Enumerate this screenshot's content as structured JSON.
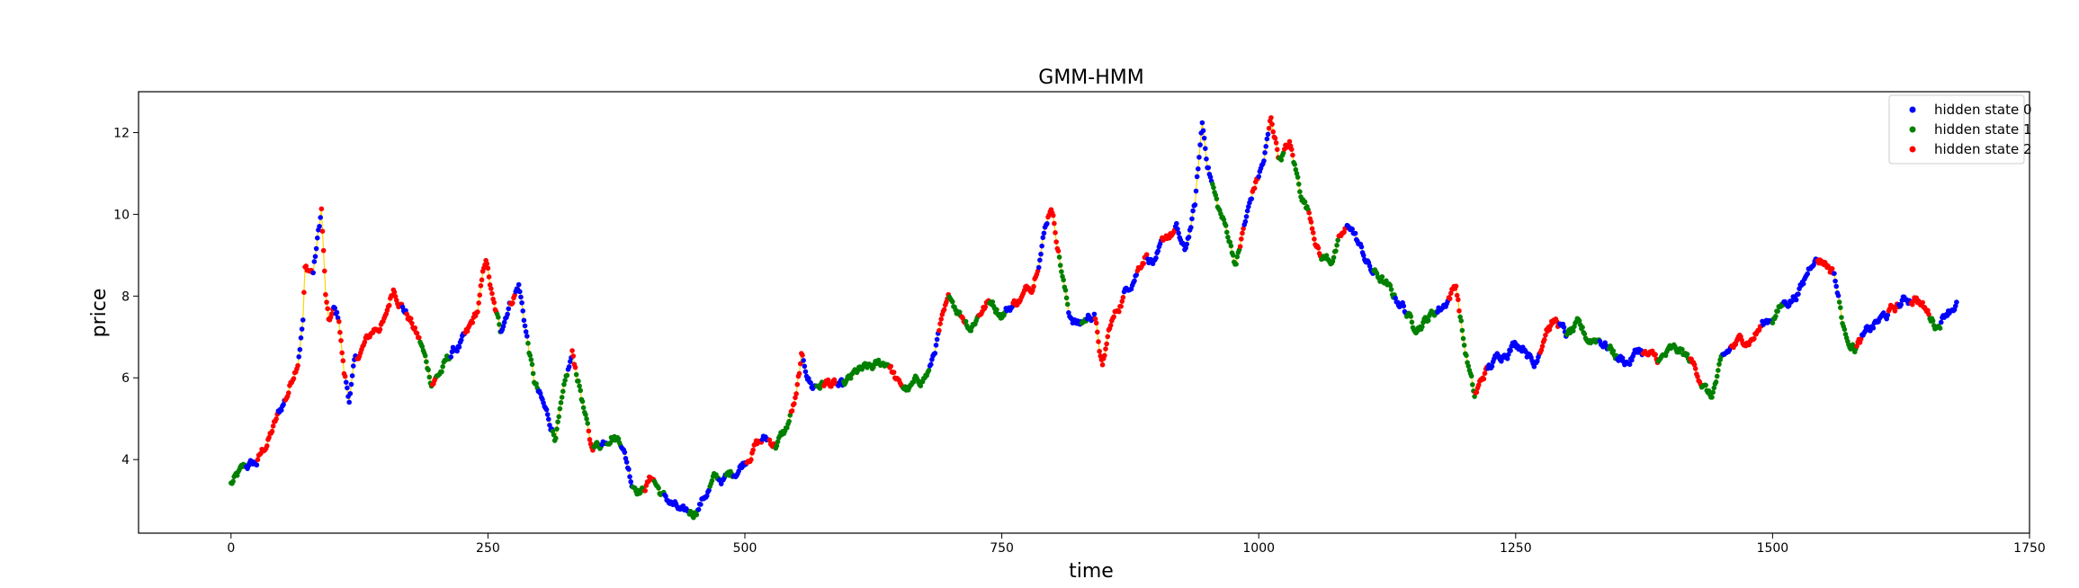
{
  "chart_data": {
    "type": "scatter",
    "title": "GMM-HMM",
    "xlabel": "time",
    "ylabel": "price",
    "xlim": [
      -90,
      1750
    ],
    "ylim": [
      2.2,
      13.0
    ],
    "xticks": [
      0,
      250,
      500,
      750,
      1000,
      1250,
      1500,
      1750
    ],
    "yticks": [
      4,
      6,
      8,
      10,
      12
    ],
    "line_color": "#ffd700",
    "legend_position": "top-right",
    "n_points": 1680,
    "series": [
      {
        "name": "hidden state 0",
        "color": "#0000ff"
      },
      {
        "name": "hidden state 1",
        "color": "#008000"
      },
      {
        "name": "hidden state 2",
        "color": "#ff0000"
      }
    ],
    "path": [
      [
        0,
        3.4
      ],
      [
        15,
        3.8
      ],
      [
        25,
        3.9
      ],
      [
        35,
        4.4
      ],
      [
        45,
        5.0
      ],
      [
        55,
        5.6
      ],
      [
        65,
        6.5
      ],
      [
        70,
        7.5
      ],
      [
        72,
        8.7
      ],
      [
        80,
        8.6
      ],
      [
        88,
        10.1
      ],
      [
        92,
        8.0
      ],
      [
        95,
        7.3
      ],
      [
        100,
        7.6
      ],
      [
        105,
        7.4
      ],
      [
        110,
        6.1
      ],
      [
        115,
        5.5
      ],
      [
        120,
        6.3
      ],
      [
        130,
        6.8
      ],
      [
        140,
        7.2
      ],
      [
        150,
        7.4
      ],
      [
        158,
        8.2
      ],
      [
        165,
        7.9
      ],
      [
        175,
        7.4
      ],
      [
        185,
        6.8
      ],
      [
        195,
        5.9
      ],
      [
        205,
        6.2
      ],
      [
        215,
        6.6
      ],
      [
        230,
        7.0
      ],
      [
        240,
        7.6
      ],
      [
        248,
        8.9
      ],
      [
        255,
        7.8
      ],
      [
        262,
        7.1
      ],
      [
        270,
        7.8
      ],
      [
        280,
        8.3
      ],
      [
        288,
        7.0
      ],
      [
        295,
        5.9
      ],
      [
        305,
        5.2
      ],
      [
        315,
        4.6
      ],
      [
        325,
        5.7
      ],
      [
        332,
        6.5
      ],
      [
        340,
        5.7
      ],
      [
        350,
        4.3
      ],
      [
        360,
        4.4
      ],
      [
        370,
        4.7
      ],
      [
        380,
        4.5
      ],
      [
        390,
        3.5
      ],
      [
        400,
        3.3
      ],
      [
        410,
        3.6
      ],
      [
        420,
        3.1
      ],
      [
        430,
        2.9
      ],
      [
        440,
        2.6
      ],
      [
        450,
        2.7
      ],
      [
        460,
        3.1
      ],
      [
        470,
        3.5
      ],
      [
        480,
        3.5
      ],
      [
        490,
        3.7
      ],
      [
        500,
        4.0
      ],
      [
        510,
        4.4
      ],
      [
        520,
        4.5
      ],
      [
        530,
        4.4
      ],
      [
        540,
        4.7
      ],
      [
        550,
        5.5
      ],
      [
        555,
        6.4
      ],
      [
        565,
        5.8
      ],
      [
        580,
        5.9
      ],
      [
        595,
        5.7
      ],
      [
        610,
        6.1
      ],
      [
        625,
        6.2
      ],
      [
        640,
        6.4
      ],
      [
        650,
        5.8
      ],
      [
        660,
        5.7
      ],
      [
        670,
        5.9
      ],
      [
        680,
        6.2
      ],
      [
        690,
        7.2
      ],
      [
        700,
        7.9
      ],
      [
        710,
        7.6
      ],
      [
        720,
        7.3
      ],
      [
        730,
        7.7
      ],
      [
        740,
        7.9
      ],
      [
        750,
        7.6
      ],
      [
        760,
        7.8
      ],
      [
        770,
        8.0
      ],
      [
        780,
        8.3
      ],
      [
        790,
        9.5
      ],
      [
        798,
        10.3
      ],
      [
        805,
        9.2
      ],
      [
        815,
        7.6
      ],
      [
        825,
        7.3
      ],
      [
        840,
        7.6
      ],
      [
        848,
        6.2
      ],
      [
        855,
        7.2
      ],
      [
        870,
        8.1
      ],
      [
        880,
        8.6
      ],
      [
        890,
        9.1
      ],
      [
        900,
        8.8
      ],
      [
        910,
        9.4
      ],
      [
        920,
        9.6
      ],
      [
        928,
        9.0
      ],
      [
        938,
        10.2
      ],
      [
        945,
        12.2
      ],
      [
        950,
        11.3
      ],
      [
        960,
        10.2
      ],
      [
        970,
        9.5
      ],
      [
        978,
        8.8
      ],
      [
        985,
        9.6
      ],
      [
        995,
        10.6
      ],
      [
        1005,
        11.3
      ],
      [
        1012,
        12.3
      ],
      [
        1020,
        11.4
      ],
      [
        1030,
        11.7
      ],
      [
        1040,
        10.6
      ],
      [
        1050,
        10.0
      ],
      [
        1060,
        9.0
      ],
      [
        1070,
        8.9
      ],
      [
        1080,
        9.4
      ],
      [
        1090,
        9.7
      ],
      [
        1100,
        9.1
      ],
      [
        1110,
        8.6
      ],
      [
        1120,
        8.4
      ],
      [
        1130,
        8.0
      ],
      [
        1140,
        7.8
      ],
      [
        1150,
        7.3
      ],
      [
        1160,
        7.4
      ],
      [
        1170,
        7.6
      ],
      [
        1180,
        7.8
      ],
      [
        1192,
        8.3
      ],
      [
        1200,
        6.8
      ],
      [
        1210,
        5.5
      ],
      [
        1220,
        6.1
      ],
      [
        1230,
        6.4
      ],
      [
        1240,
        6.7
      ],
      [
        1250,
        6.9
      ],
      [
        1260,
        6.8
      ],
      [
        1268,
        6.3
      ],
      [
        1280,
        7.3
      ],
      [
        1290,
        7.4
      ],
      [
        1300,
        7.0
      ],
      [
        1310,
        7.2
      ],
      [
        1320,
        6.9
      ],
      [
        1330,
        7.0
      ],
      [
        1340,
        6.8
      ],
      [
        1350,
        6.5
      ],
      [
        1360,
        6.4
      ],
      [
        1370,
        6.7
      ],
      [
        1380,
        6.5
      ],
      [
        1390,
        6.4
      ],
      [
        1400,
        6.6
      ],
      [
        1410,
        6.6
      ],
      [
        1420,
        6.4
      ],
      [
        1430,
        6.0
      ],
      [
        1440,
        5.5
      ],
      [
        1450,
        6.3
      ],
      [
        1460,
        6.7
      ],
      [
        1470,
        6.9
      ],
      [
        1480,
        7.0
      ],
      [
        1490,
        7.3
      ],
      [
        1500,
        7.5
      ],
      [
        1510,
        7.8
      ],
      [
        1520,
        8.0
      ],
      [
        1530,
        8.3
      ],
      [
        1540,
        9.0
      ],
      [
        1550,
        8.9
      ],
      [
        1560,
        8.6
      ],
      [
        1570,
        7.1
      ],
      [
        1580,
        6.8
      ],
      [
        1590,
        7.0
      ],
      [
        1600,
        7.3
      ],
      [
        1610,
        7.5
      ],
      [
        1620,
        7.7
      ],
      [
        1630,
        7.9
      ],
      [
        1640,
        8.0
      ],
      [
        1650,
        7.6
      ],
      [
        1660,
        7.3
      ],
      [
        1670,
        7.7
      ],
      [
        1680,
        7.9
      ]
    ]
  }
}
